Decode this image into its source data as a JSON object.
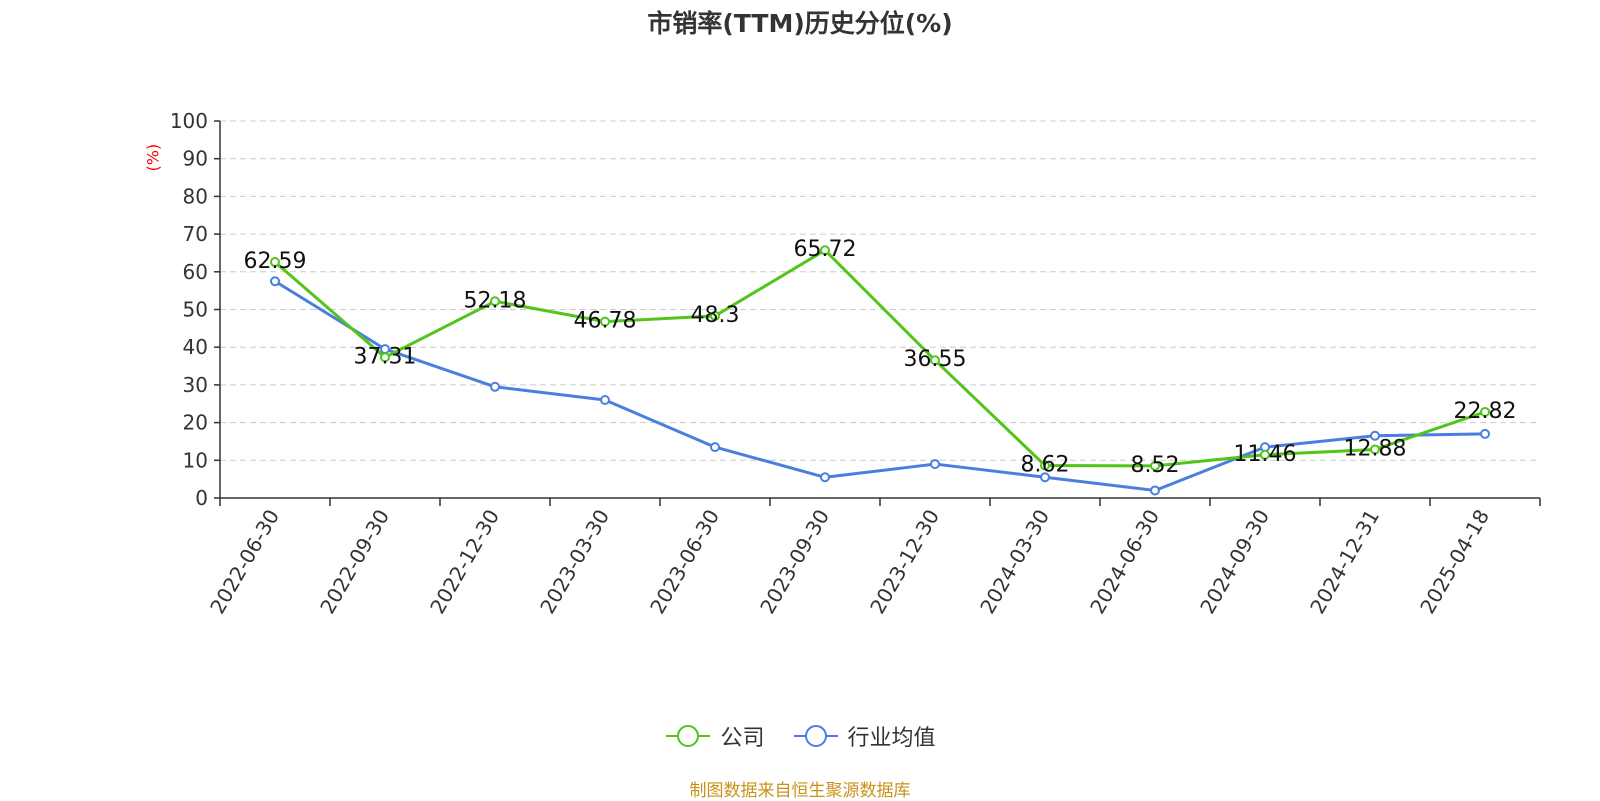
{
  "chart_data": {
    "type": "line",
    "title": "市销率(TTM)历史分位(%)",
    "ylabel": "(%)",
    "xlabel": "",
    "ylim": [
      0,
      100
    ],
    "yticks": [
      0,
      10,
      20,
      30,
      40,
      50,
      60,
      70,
      80,
      90,
      100
    ],
    "grid": true,
    "legend_position": "bottom-center",
    "categories": [
      "2022-06-30",
      "2022-09-30",
      "2022-12-30",
      "2023-03-30",
      "2023-06-30",
      "2023-09-30",
      "2023-12-30",
      "2024-03-30",
      "2024-06-30",
      "2024-09-30",
      "2024-12-31",
      "2025-04-18"
    ],
    "series": [
      {
        "name": "公司",
        "color": "#52c41a",
        "values": [
          62.59,
          37.31,
          52.18,
          46.78,
          48.3,
          65.72,
          36.55,
          8.62,
          8.52,
          11.46,
          12.88,
          22.82
        ],
        "labels": [
          "62.59",
          "37.31",
          "52.18",
          "46.78",
          "48.3",
          "65.72",
          "36.55",
          "8.62",
          "8.52",
          "11.46",
          "12.88",
          "22.82"
        ]
      },
      {
        "name": "行业均值",
        "color": "#4a7fe0",
        "values": [
          57.5,
          39.5,
          29.5,
          26.0,
          13.5,
          5.5,
          9.0,
          5.5,
          2.0,
          13.5,
          16.5,
          17.0
        ]
      }
    ]
  },
  "footer": {
    "source": "制图数据来自恒生聚源数据库"
  }
}
